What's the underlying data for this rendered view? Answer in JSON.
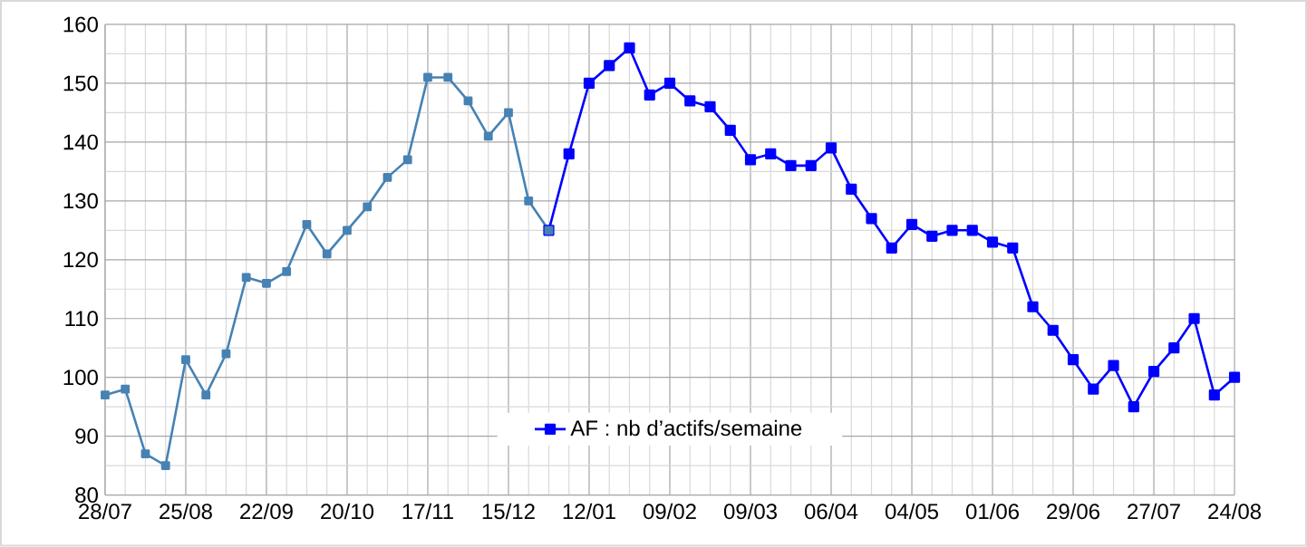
{
  "chart_data": {
    "type": "line",
    "categories": [
      "28/07",
      null,
      null,
      null,
      "25/08",
      null,
      null,
      null,
      "22/09",
      null,
      null,
      null,
      "20/10",
      null,
      null,
      null,
      "17/11",
      null,
      null,
      null,
      "15/12",
      null,
      null,
      null,
      "12/01",
      null,
      null,
      null,
      "09/02",
      null,
      null,
      null,
      "09/03",
      null,
      null,
      null,
      "06/04",
      null,
      null,
      null,
      "04/05",
      null,
      null,
      null,
      "01/06",
      null,
      null,
      null,
      "29/06",
      null,
      null,
      null,
      "27/07",
      null,
      null,
      null,
      "24/08"
    ],
    "series": [
      {
        "color": "#4682b4",
        "values": [
          97,
          98,
          87,
          85,
          103,
          97,
          104,
          117,
          116,
          118,
          126,
          121,
          125,
          129,
          134,
          137,
          151,
          151,
          147,
          141,
          145,
          130,
          125,
          null,
          null,
          null,
          null,
          null,
          null,
          null,
          null,
          null,
          null,
          null,
          null,
          null,
          null,
          null,
          null,
          null,
          null,
          null,
          null,
          null,
          null,
          null,
          null,
          null,
          null,
          null,
          null,
          null,
          null,
          null,
          null,
          null,
          null
        ]
      },
      {
        "name": "AF : nb d’actifs/semaine",
        "color": "#0000ff",
        "values": [
          null,
          null,
          null,
          null,
          null,
          null,
          null,
          null,
          null,
          null,
          null,
          null,
          null,
          null,
          null,
          null,
          null,
          null,
          null,
          null,
          null,
          null,
          125,
          138,
          150,
          153,
          156,
          148,
          150,
          147,
          146,
          142,
          137,
          138,
          136,
          136,
          139,
          132,
          127,
          122,
          126,
          124,
          125,
          125,
          123,
          122,
          112,
          108,
          103,
          98,
          102,
          95,
          101,
          105,
          110,
          97,
          100
        ]
      }
    ],
    "ylim": [
      80,
      160
    ],
    "yticks": [
      80,
      90,
      100,
      110,
      120,
      130,
      140,
      150,
      160
    ],
    "grid": true,
    "legend": "bottom",
    "marker": "square",
    "line_style": "solid"
  }
}
